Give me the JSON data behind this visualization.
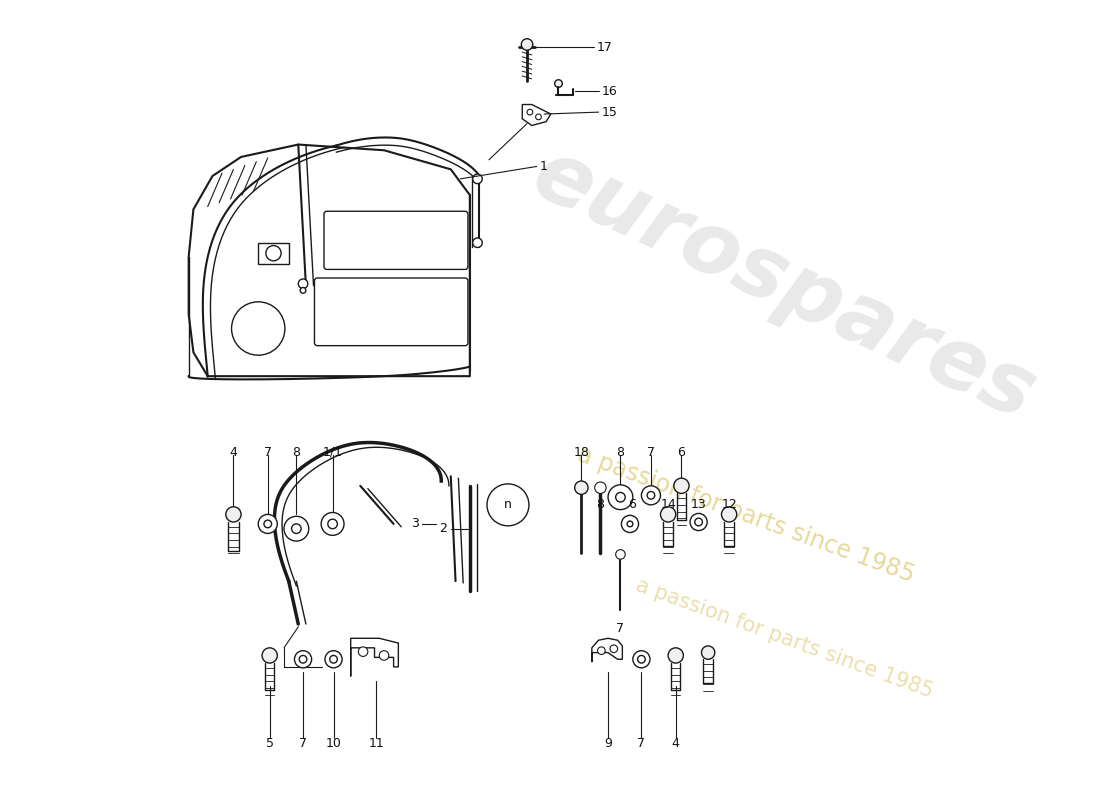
{
  "bg_color": "#ffffff",
  "lc": "#1a1a1a",
  "figsize": [
    11.0,
    8.0
  ],
  "dpi": 100,
  "watermark": {
    "text1": "eurospares",
    "text2": "a passion for parts since 1985",
    "color1": "#c0c0c0",
    "color2": "#d4b84a",
    "alpha1": 0.35,
    "alpha2": 0.55
  }
}
